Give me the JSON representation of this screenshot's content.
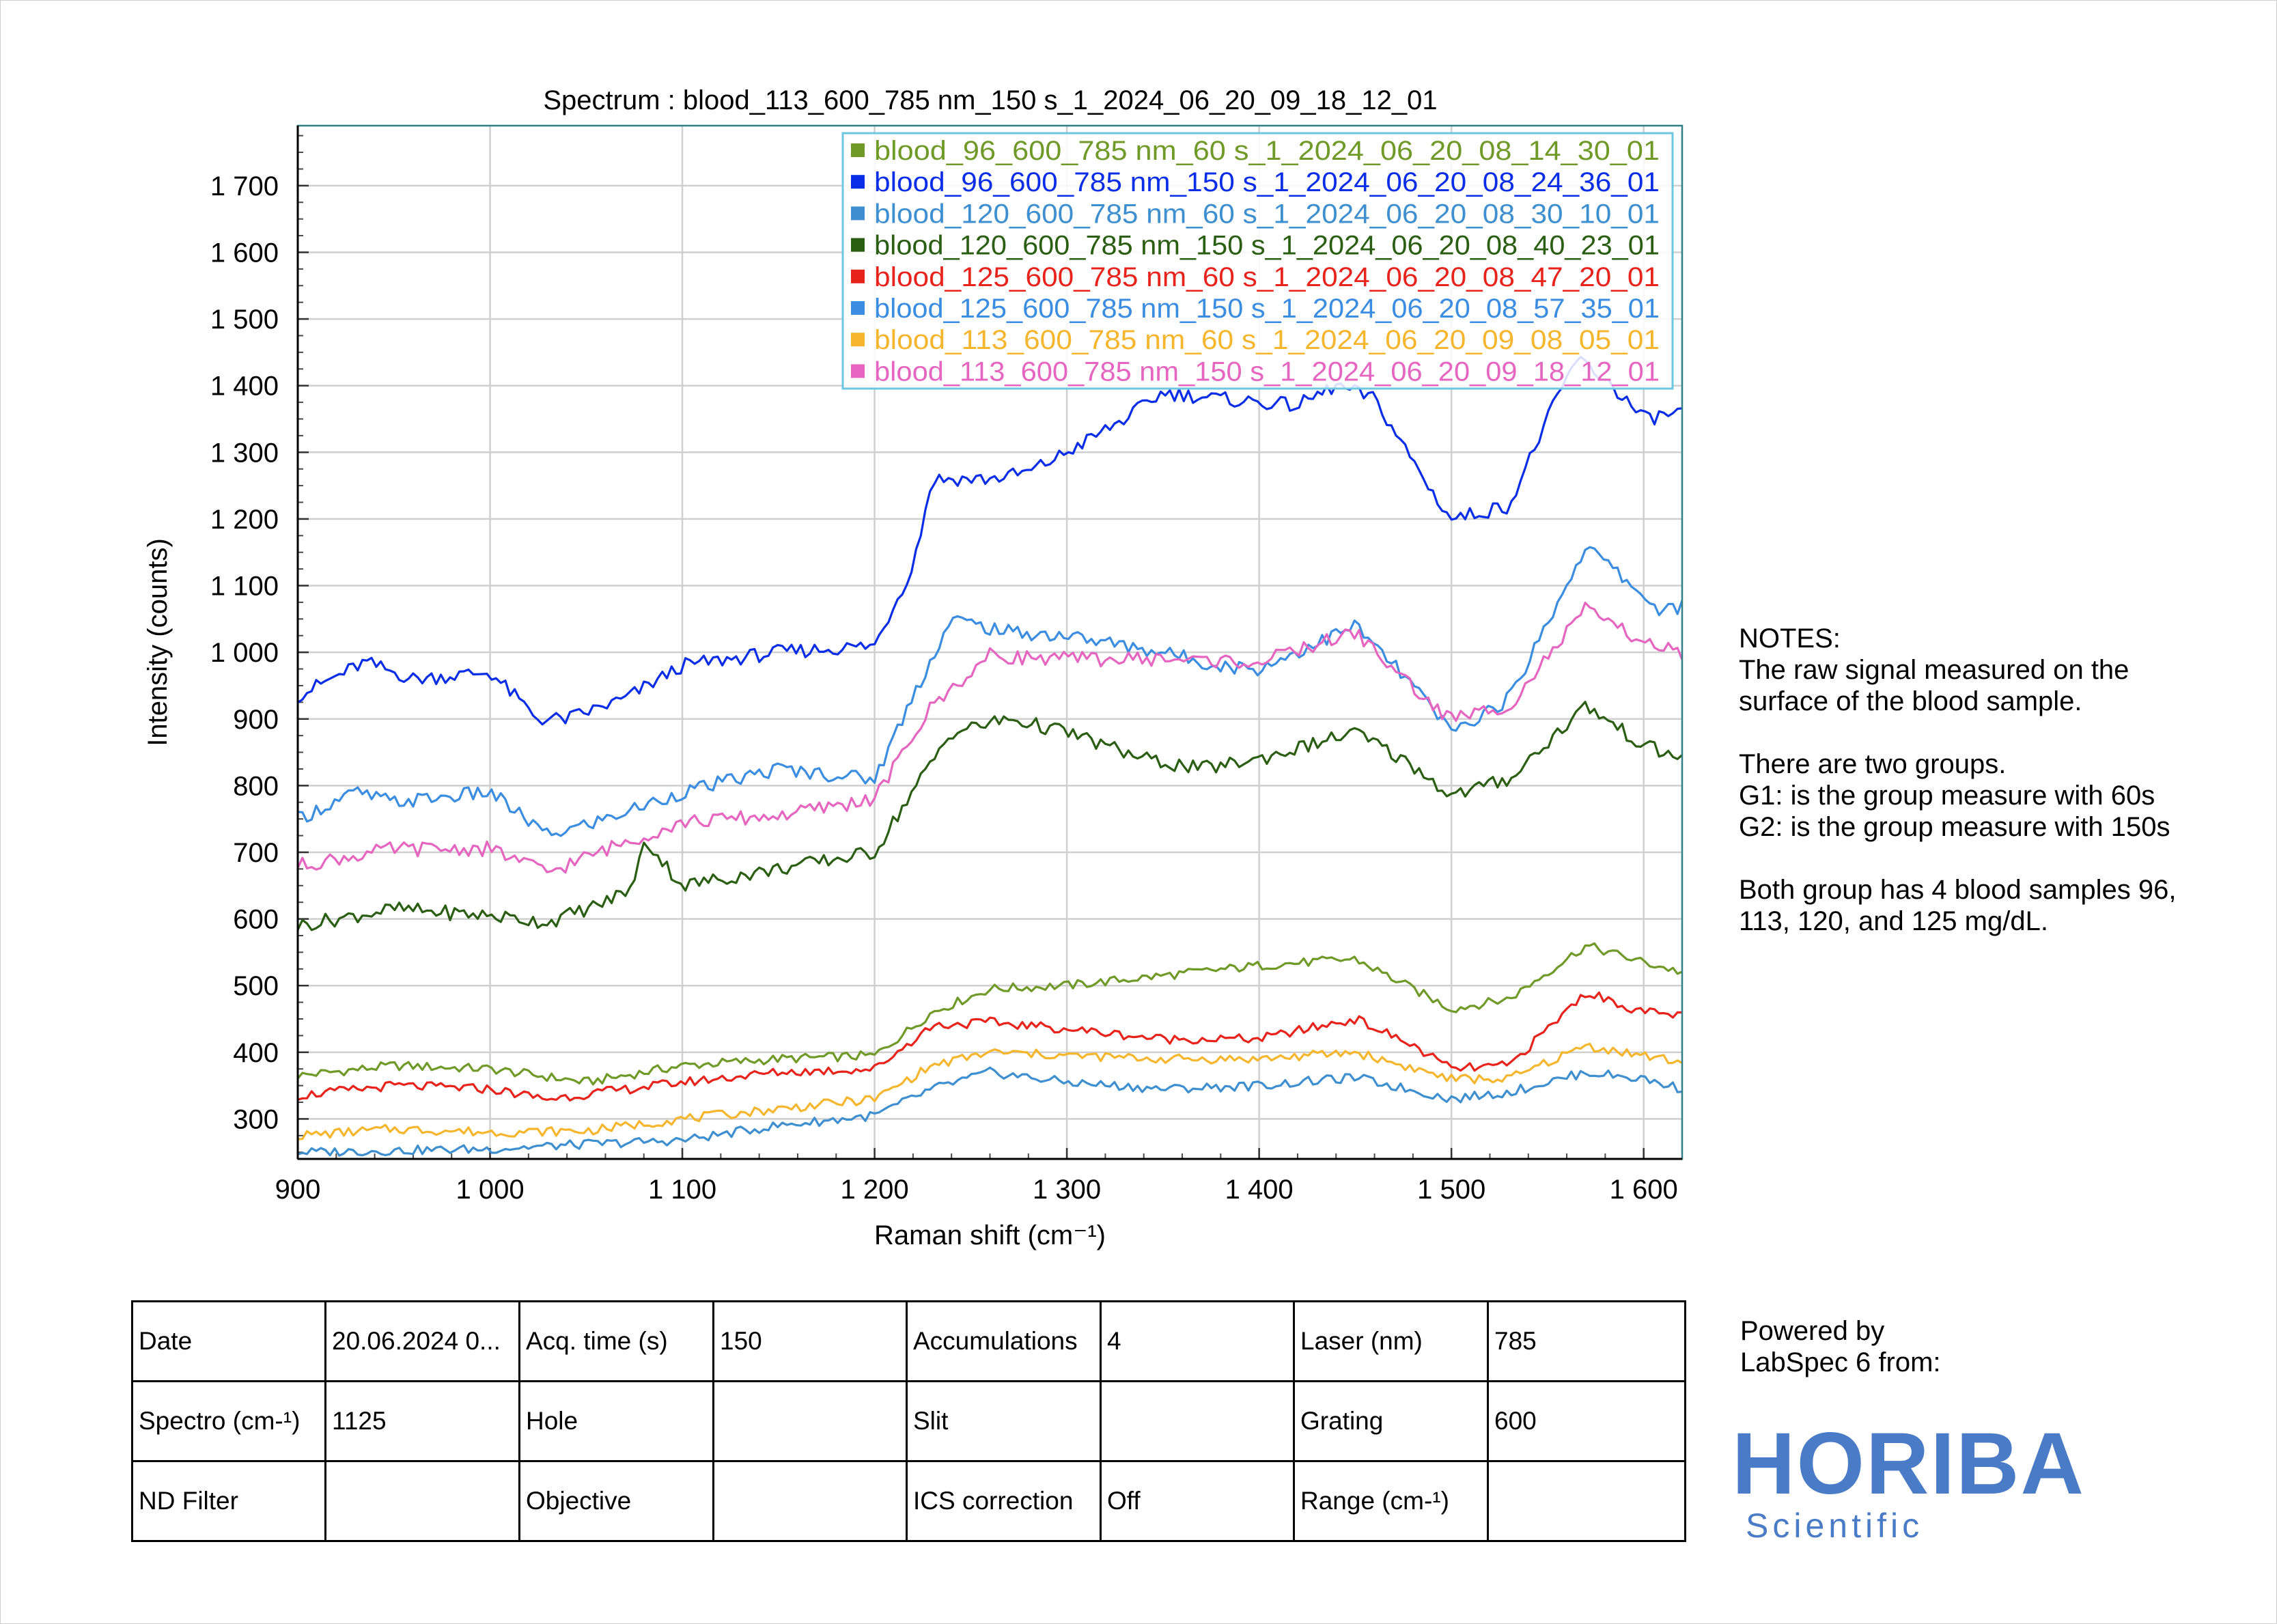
{
  "chart_data": {
    "type": "line",
    "title": "Spectrum : blood_113_600_785 nm_150 s_1_2024_06_20_09_18_12_01",
    "xlabel": "Raman shift (cm⁻¹)",
    "ylabel": "Intensity (counts)",
    "xlim": [
      900,
      1620
    ],
    "ylim": [
      240,
      1790
    ],
    "x_ticks": [
      900,
      1000,
      1100,
      1200,
      1300,
      1400,
      1500,
      1600
    ],
    "x_tick_labels": [
      "900",
      "1 000",
      "1 100",
      "1 200",
      "1 300",
      "1 400",
      "1 500",
      "1 600"
    ],
    "y_ticks": [
      300,
      400,
      500,
      600,
      700,
      800,
      900,
      1000,
      1100,
      1200,
      1300,
      1400,
      1500,
      1600,
      1700
    ],
    "y_tick_labels": [
      "300",
      "400",
      "500",
      "600",
      "700",
      "800",
      "900",
      "1 000",
      "1 100",
      "1 200",
      "1 300",
      "1 400",
      "1 500",
      "1 600",
      "1 700"
    ],
    "grid": true,
    "legend_position": "top-right",
    "series": [
      {
        "name": "blood_96_600_785 nm_60 s_1_2024_06_20_08_14_30_01",
        "color": "#6f9a27",
        "x": [
          900,
          950,
          1000,
          1050,
          1100,
          1150,
          1200,
          1230,
          1260,
          1300,
          1350,
          1400,
          1450,
          1500,
          1530,
          1570,
          1600,
          1620
        ],
        "y": [
          365,
          380,
          375,
          355,
          380,
          390,
          395,
          460,
          495,
          500,
          515,
          530,
          540,
          465,
          480,
          560,
          535,
          520
        ]
      },
      {
        "name": "blood_96_600_785 nm_150 s_1_2024_06_20_08_24_36_01",
        "color": "#0a2ee8",
        "x": [
          900,
          935,
          960,
          1000,
          1025,
          1040,
          1070,
          1100,
          1150,
          1200,
          1220,
          1230,
          1260,
          1280,
          1300,
          1330,
          1350,
          1380,
          1420,
          1440,
          1460,
          1490,
          1500,
          1530,
          1550,
          1565,
          1580,
          1600,
          1620
        ],
        "y": [
          935,
          985,
          960,
          970,
          900,
          900,
          930,
          980,
          1000,
          1010,
          1130,
          1260,
          1260,
          1270,
          1300,
          1350,
          1390,
          1380,
          1370,
          1400,
          1380,
          1240,
          1200,
          1220,
          1350,
          1440,
          1410,
          1350,
          1360
        ]
      },
      {
        "name": "blood_120_600_785 nm_60 s_1_2024_06_20_08_30_10_01",
        "color": "#3d8fcf",
        "x": [
          900,
          1000,
          1050,
          1100,
          1150,
          1200,
          1230,
          1260,
          1300,
          1350,
          1400,
          1450,
          1500,
          1530,
          1570,
          1600,
          1620
        ],
        "y": [
          250,
          255,
          262,
          268,
          290,
          305,
          345,
          370,
          355,
          345,
          350,
          362,
          330,
          340,
          370,
          360,
          345
        ]
      },
      {
        "name": "blood_120_600_785 nm_150 s_1_2024_06_20_08_40_23_01",
        "color": "#2a5e12",
        "x": [
          900,
          950,
          1000,
          1030,
          1060,
          1075,
          1080,
          1100,
          1150,
          1200,
          1215,
          1240,
          1270,
          1300,
          1340,
          1370,
          1400,
          1450,
          1480,
          1500,
          1530,
          1570,
          1600,
          1620
        ],
        "y": [
          590,
          615,
          605,
          595,
          625,
          650,
          720,
          650,
          675,
          700,
          770,
          880,
          900,
          880,
          840,
          825,
          840,
          880,
          830,
          785,
          810,
          920,
          860,
          840
        ]
      },
      {
        "name": "blood_125_600_785 nm_60 s_1_2024_06_20_08_47_20_01",
        "color": "#e8231c",
        "x": [
          900,
          950,
          1000,
          1030,
          1100,
          1150,
          1200,
          1230,
          1260,
          1300,
          1350,
          1400,
          1450,
          1480,
          1500,
          1530,
          1570,
          1600,
          1620
        ],
        "y": [
          335,
          350,
          345,
          330,
          355,
          370,
          375,
          440,
          445,
          435,
          420,
          420,
          450,
          410,
          375,
          380,
          490,
          460,
          455
        ]
      },
      {
        "name": "blood_125_600_785 nm_150 s_1_2024_06_20_08_57_35_01",
        "color": "#3a8de0",
        "x": [
          900,
          930,
          950,
          1000,
          1030,
          1060,
          1100,
          1150,
          1200,
          1220,
          1240,
          1270,
          1300,
          1350,
          1380,
          1400,
          1450,
          1480,
          1500,
          1530,
          1570,
          1590,
          1610,
          1620
        ],
        "y": [
          750,
          790,
          775,
          790,
          725,
          750,
          790,
          825,
          810,
          935,
          1050,
          1030,
          1025,
          1000,
          980,
          975,
          1040,
          950,
          880,
          930,
          1160,
          1110,
          1060,
          1070
        ]
      },
      {
        "name": "blood_113_600_785 nm_60 s_1_2024_06_20_09_08_05_01",
        "color": "#f5b62d",
        "x": [
          900,
          950,
          1000,
          1050,
          1100,
          1150,
          1200,
          1230,
          1260,
          1300,
          1350,
          1400,
          1450,
          1500,
          1530,
          1570,
          1600,
          1620
        ],
        "y": [
          275,
          285,
          280,
          282,
          300,
          315,
          330,
          380,
          400,
          395,
          390,
          390,
          400,
          360,
          360,
          410,
          395,
          385
        ]
      },
      {
        "name": "blood_113_600_785 nm_150 s_1_2024_06_20_09_18_12_01",
        "color": "#e565c0",
        "x": [
          900,
          950,
          1000,
          1030,
          1070,
          1100,
          1150,
          1200,
          1230,
          1260,
          1300,
          1350,
          1400,
          1450,
          1490,
          1500,
          1530,
          1570,
          1590,
          1620
        ],
        "y": [
          680,
          705,
          705,
          670,
          715,
          745,
          755,
          780,
          920,
          995,
          990,
          990,
          985,
          1030,
          920,
          900,
          920,
          1065,
          1030,
          995
        ]
      }
    ]
  },
  "notes": {
    "heading": "NOTES:",
    "line1": "The raw signal measured on the",
    "line2": "surface of the blood sample.",
    "line3": "There are two groups.",
    "line4": "G1: is the group measure with 60s",
    "line5": "G2: is the group measure with 150s",
    "line6": "Both group has 4 blood samples 96,",
    "line7": "113, 120, and 125 mg/dL."
  },
  "info_table": {
    "rows": [
      [
        "Date",
        "20.06.2024 0...",
        "Acq. time (s)",
        "150",
        "Accumulations",
        "4",
        "Laser (nm)",
        "785"
      ],
      [
        "Spectro (cm-¹)",
        "1125",
        "Hole",
        "",
        "Slit",
        "",
        "Grating",
        "600"
      ],
      [
        "ND Filter",
        "",
        "Objective",
        "",
        "ICS correction",
        "Off",
        "Range (cm-¹)",
        ""
      ]
    ]
  },
  "branding": {
    "powered_line1": "Powered by",
    "powered_line2": "LabSpec 6 from:",
    "logo_main": "HORIBA",
    "logo_sub": "Scientific"
  }
}
